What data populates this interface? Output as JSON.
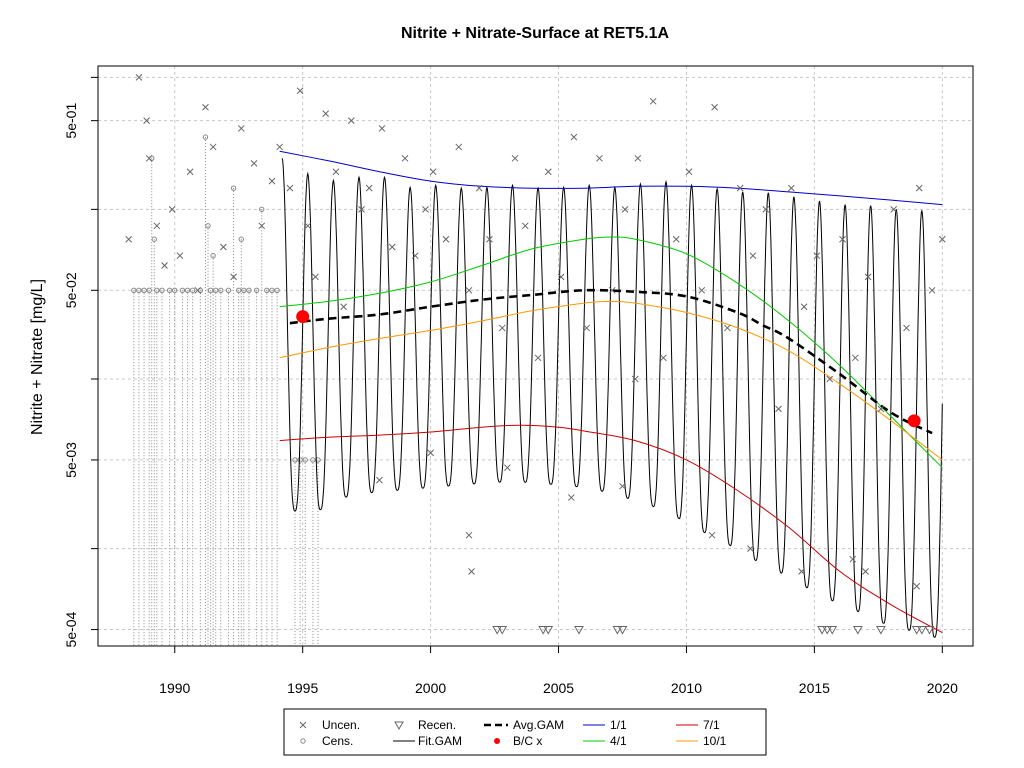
{
  "chart_data": {
    "type": "line",
    "title": "Nitrite + Nitrate-Surface at RET5.1A",
    "xlabel": "",
    "ylabel": "Nitrite + Nitrate [mg/L]",
    "x_scale": "linear",
    "y_scale": "log10",
    "xlim": [
      1987.0,
      2021.2
    ],
    "ylim": [
      0.0004,
      1.05
    ],
    "x_ticks": [
      1990,
      1995,
      2000,
      2005,
      2010,
      2015,
      2020
    ],
    "x_tick_labels": [
      "1990",
      "1995",
      "2000",
      "2005",
      "2010",
      "2015",
      "2020"
    ],
    "y_ticks": [
      0.0005,
      0.005,
      0.05,
      0.5
    ],
    "y_tick_labels": [
      "5e-04",
      "5e-03",
      "5e-02",
      "5e-01"
    ],
    "y_minor_ticks": [
      0.0015,
      0.015,
      0.15,
      0.9
    ],
    "grid": true,
    "colors": {
      "uncensored": "#666666",
      "censored": "#888888",
      "fit_gam": "#000000",
      "avg_gam": "#000000",
      "bc": "#ff0000",
      "s_1_1": "#0000cc",
      "s_4_1": "#00cc00",
      "s_7_1": "#cc0000",
      "s_10_1": "#ff9900"
    },
    "legend": {
      "placement": "bottom",
      "entries": [
        {
          "key": "uncen",
          "label": "Uncen."
        },
        {
          "key": "cens",
          "label": "Cens."
        },
        {
          "key": "recen",
          "label": "Recen."
        },
        {
          "key": "fitgam",
          "label": "Fit.GAM"
        },
        {
          "key": "avggam",
          "label": "Avg.GAM"
        },
        {
          "key": "bc",
          "label": "B/C x"
        },
        {
          "key": "s11",
          "label": "1/1"
        },
        {
          "key": "s41",
          "label": "4/1"
        },
        {
          "key": "s71",
          "label": "7/1"
        },
        {
          "key": "s101",
          "label": "10/1"
        }
      ]
    },
    "series": [
      {
        "key": "s11",
        "name": "1/1",
        "x": [
          1994.1,
          1996,
          1998,
          2000,
          2002,
          2004,
          2006,
          2008,
          2010,
          2012,
          2014,
          2016,
          2018,
          2020
        ],
        "values": [
          0.33,
          0.29,
          0.25,
          0.22,
          0.205,
          0.2,
          0.2,
          0.205,
          0.205,
          0.2,
          0.19,
          0.18,
          0.17,
          0.16
        ]
      },
      {
        "key": "s41",
        "name": "4/1",
        "x": [
          1994.1,
          1996,
          1998,
          2000,
          2002,
          2004,
          2006,
          2007,
          2008,
          2010,
          2012,
          2014,
          2016,
          2018,
          2020
        ],
        "values": [
          0.04,
          0.043,
          0.048,
          0.056,
          0.07,
          0.088,
          0.1,
          0.103,
          0.1,
          0.082,
          0.055,
          0.033,
          0.018,
          0.009,
          0.0045
        ]
      },
      {
        "key": "s71",
        "name": "7/1",
        "x": [
          1994.1,
          1996,
          1998,
          2000,
          2002,
          2003.5,
          2005,
          2006,
          2008,
          2010,
          2012,
          2014,
          2016,
          2018,
          2020
        ],
        "values": [
          0.0065,
          0.0068,
          0.007,
          0.0073,
          0.0078,
          0.008,
          0.0078,
          0.0074,
          0.0065,
          0.005,
          0.0033,
          0.002,
          0.0011,
          0.0007,
          0.00048
        ]
      },
      {
        "key": "s101",
        "name": "10/1",
        "x": [
          1994.1,
          1996,
          1998,
          2000,
          2002,
          2004,
          2006,
          2007,
          2008,
          2010,
          2012,
          2014,
          2016,
          2018,
          2020
        ],
        "values": [
          0.02,
          0.023,
          0.026,
          0.029,
          0.033,
          0.038,
          0.042,
          0.043,
          0.042,
          0.037,
          0.03,
          0.022,
          0.014,
          0.0085,
          0.005
        ]
      },
      {
        "key": "avggam",
        "name": "Avg.GAM",
        "x": [
          1994.5,
          1996,
          1998,
          2000,
          2002,
          2004,
          2006,
          2008,
          2010,
          2012,
          2013,
          2014,
          2016,
          2018,
          2019.6
        ],
        "values": [
          0.032,
          0.034,
          0.036,
          0.04,
          0.044,
          0.047,
          0.05,
          0.049,
          0.046,
          0.037,
          0.031,
          0.026,
          0.016,
          0.0095,
          0.0072
        ]
      },
      {
        "key": "bc",
        "name": "B/C x",
        "x": [
          1995.0,
          2018.9
        ],
        "values": [
          0.035,
          0.0085
        ]
      }
    ],
    "fit_gam": {
      "name": "Fit.GAM",
      "x_start": 1994.2,
      "x_end": 2020.0,
      "peaks": [
        {
          "x": 1994.2,
          "y": 0.3
        },
        {
          "x": 1995.0,
          "y": 0.25
        },
        {
          "x": 1996.0,
          "y": 0.22
        },
        {
          "x": 1997.0,
          "y": 0.23
        },
        {
          "x": 1998.0,
          "y": 0.24
        },
        {
          "x": 1999.0,
          "y": 0.2
        },
        {
          "x": 2000.0,
          "y": 0.21
        },
        {
          "x": 2001.0,
          "y": 0.2
        },
        {
          "x": 2002.0,
          "y": 0.2
        },
        {
          "x": 2003.0,
          "y": 0.21
        },
        {
          "x": 2004.0,
          "y": 0.2
        },
        {
          "x": 2005.0,
          "y": 0.2
        },
        {
          "x": 2006.0,
          "y": 0.21
        },
        {
          "x": 2007.0,
          "y": 0.2
        },
        {
          "x": 2008.0,
          "y": 0.21
        },
        {
          "x": 2009.0,
          "y": 0.22
        },
        {
          "x": 2010.0,
          "y": 0.21
        },
        {
          "x": 2011.0,
          "y": 0.2
        },
        {
          "x": 2012.0,
          "y": 0.19
        },
        {
          "x": 2013.0,
          "y": 0.19
        },
        {
          "x": 2014.0,
          "y": 0.18
        },
        {
          "x": 2015.0,
          "y": 0.17
        },
        {
          "x": 2016.0,
          "y": 0.16
        },
        {
          "x": 2017.0,
          "y": 0.16
        },
        {
          "x": 2018.0,
          "y": 0.15
        },
        {
          "x": 2019.0,
          "y": 0.15
        },
        {
          "x": 2020.0,
          "y": 0.14
        }
      ],
      "troughs": [
        {
          "x": 1994.6,
          "y": 0.0025
        },
        {
          "x": 1995.6,
          "y": 0.0025
        },
        {
          "x": 1996.6,
          "y": 0.003
        },
        {
          "x": 1997.6,
          "y": 0.0032
        },
        {
          "x": 1998.6,
          "y": 0.0033
        },
        {
          "x": 1999.6,
          "y": 0.0034
        },
        {
          "x": 2000.6,
          "y": 0.0035
        },
        {
          "x": 2001.6,
          "y": 0.0036
        },
        {
          "x": 2002.6,
          "y": 0.0037
        },
        {
          "x": 2003.6,
          "y": 0.0037
        },
        {
          "x": 2004.6,
          "y": 0.0036
        },
        {
          "x": 2005.6,
          "y": 0.0035
        },
        {
          "x": 2006.6,
          "y": 0.0033
        },
        {
          "x": 2007.6,
          "y": 0.003
        },
        {
          "x": 2008.6,
          "y": 0.0027
        },
        {
          "x": 2009.6,
          "y": 0.0023
        },
        {
          "x": 2010.6,
          "y": 0.0019
        },
        {
          "x": 2011.6,
          "y": 0.0016
        },
        {
          "x": 2012.6,
          "y": 0.0013
        },
        {
          "x": 2013.6,
          "y": 0.0011
        },
        {
          "x": 2014.6,
          "y": 0.0009
        },
        {
          "x": 2015.6,
          "y": 0.00075
        },
        {
          "x": 2016.6,
          "y": 0.00065
        },
        {
          "x": 2017.6,
          "y": 0.00055
        },
        {
          "x": 2018.6,
          "y": 0.0005
        },
        {
          "x": 2019.6,
          "y": 0.00045
        }
      ]
    },
    "uncensored_points": {
      "x": [
        1988.2,
        1988.6,
        1988.9,
        1989.0,
        1989.3,
        1989.6,
        1989.9,
        1990.2,
        1990.6,
        1990.9,
        1991.2,
        1991.5,
        1991.9,
        1992.3,
        1992.6,
        1993.1,
        1993.4,
        1993.8,
        1994.1,
        1994.5,
        1994.9,
        1995.2,
        1995.5,
        1995.9,
        1996.3,
        1996.6,
        1996.9,
        1997.3,
        1997.6,
        1998.1,
        1998.5,
        1999.0,
        1999.4,
        1999.8,
        2000.1,
        2000.6,
        2001.1,
        2001.5,
        2001.9,
        2002.3,
        2002.8,
        2003.3,
        2003.7,
        2004.2,
        2004.6,
        2005.1,
        2005.6,
        2006.1,
        2006.6,
        2007.1,
        2007.6,
        2008.1,
        2008.7,
        2009.1,
        2009.6,
        2010.1,
        2010.6,
        2011.1,
        2011.6,
        2012.1,
        2012.6,
        2013.1,
        2013.6,
        2014.1,
        2014.6,
        2015.1,
        2015.6,
        2016.1,
        2016.6,
        2017.1,
        2017.6,
        2018.1,
        2018.6,
        2019.1,
        2019.6,
        2020.0,
        2001.5,
        2001.6,
        2012.5,
        2014.5,
        2008.0,
        2007.5,
        2000.0,
        2003.0,
        2011.0,
        2017.0,
        2016.5,
        2019.0,
        1998.0,
        2005.5
      ],
      "values": [
        0.1,
        0.9,
        0.5,
        0.3,
        0.12,
        0.07,
        0.15,
        0.08,
        0.25,
        0.05,
        0.6,
        0.35,
        0.09,
        0.06,
        0.45,
        0.28,
        0.12,
        0.22,
        0.35,
        0.2,
        0.75,
        0.12,
        0.06,
        0.55,
        0.25,
        0.04,
        0.5,
        0.15,
        0.2,
        0.45,
        0.09,
        0.3,
        0.08,
        0.15,
        0.25,
        0.1,
        0.35,
        0.05,
        0.2,
        0.1,
        0.03,
        0.3,
        0.12,
        0.02,
        0.25,
        0.06,
        0.4,
        0.03,
        0.3,
        0.05,
        0.15,
        0.3,
        0.65,
        0.02,
        0.1,
        0.25,
        0.05,
        0.6,
        0.03,
        0.2,
        0.08,
        0.15,
        0.01,
        0.2,
        0.04,
        0.08,
        0.015,
        0.1,
        0.02,
        0.06,
        0.01,
        0.15,
        0.03,
        0.2,
        0.05,
        0.1,
        0.0018,
        0.0011,
        0.0015,
        0.0011,
        0.015,
        0.0035,
        0.0055,
        0.0045,
        0.0018,
        0.0011,
        0.0013,
        0.0009,
        0.0038,
        0.003
      ]
    },
    "censored_points": {
      "x": [
        1988.4,
        1988.6,
        1988.8,
        1989.0,
        1989.1,
        1989.3,
        1989.5,
        1989.8,
        1990.0,
        1990.3,
        1990.5,
        1990.7,
        1991.0,
        1991.2,
        1991.4,
        1991.6,
        1991.8,
        1992.1,
        1992.3,
        1992.5,
        1992.7,
        1992.9,
        1993.2,
        1993.4,
        1993.6,
        1993.8,
        1994.0,
        1994.7,
        1994.9,
        1995.1,
        1995.4,
        1995.6,
        1991.3,
        1989.2,
        1991.5,
        1992.6
      ],
      "values": [
        0.05,
        0.05,
        0.05,
        0.05,
        0.3,
        0.05,
        0.05,
        0.05,
        0.05,
        0.05,
        0.05,
        0.05,
        0.05,
        0.4,
        0.05,
        0.05,
        0.05,
        0.05,
        0.2,
        0.05,
        0.05,
        0.05,
        0.05,
        0.15,
        0.05,
        0.05,
        0.05,
        0.005,
        0.005,
        0.005,
        0.005,
        0.005,
        0.12,
        0.1,
        0.08,
        0.1
      ]
    },
    "recensored_points": {
      "x": [
        2002.6,
        2002.8,
        2004.4,
        2004.6,
        2005.8,
        2007.3,
        2007.5,
        2015.3,
        2015.5,
        2015.7,
        2016.7,
        2017.6,
        2019.0,
        2019.2,
        2019.5
      ],
      "values": [
        0.0005,
        0.0005,
        0.0005,
        0.0005,
        0.0005,
        0.0005,
        0.0005,
        0.0005,
        0.0005,
        0.0005,
        0.0005,
        0.0005,
        0.0005,
        0.0005,
        0.0005
      ]
    }
  }
}
